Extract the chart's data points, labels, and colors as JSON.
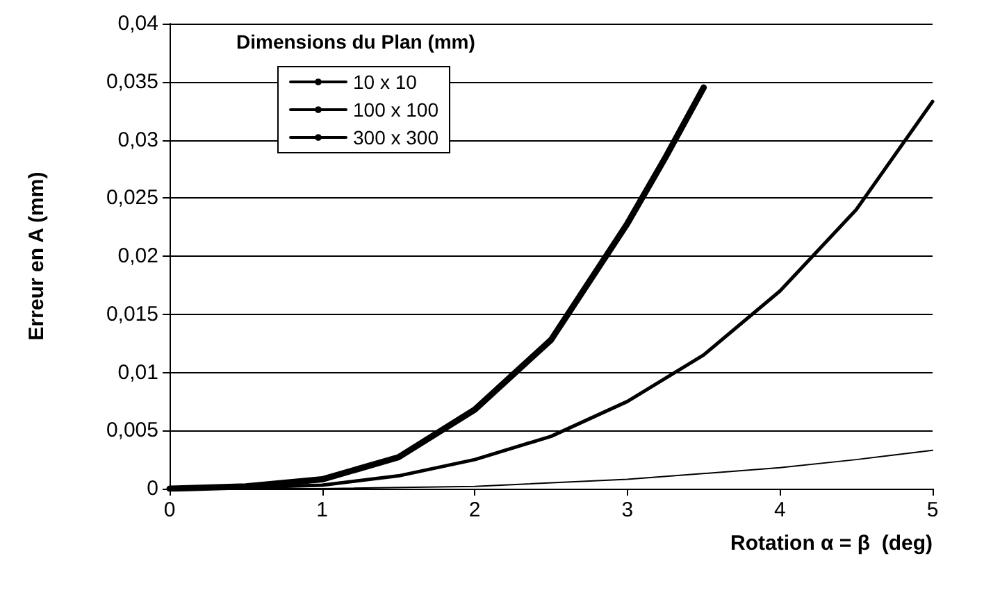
{
  "chart_data": {
    "type": "line",
    "xlabel": "Rotation α = β  (deg)",
    "ylabel": "Erreur en A (mm)",
    "legend_title": "Dimensions du Plan (mm)",
    "series": [
      {
        "name": "10 x 10",
        "color": "#000000",
        "x": [
          0,
          1,
          2,
          3,
          4,
          4.5,
          5
        ],
        "values": [
          0,
          0,
          0.0002,
          0.0008,
          0.0018,
          0.0025,
          0.0033
        ]
      },
      {
        "name": "100 x 100",
        "color": "#000000",
        "x": [
          0,
          0.5,
          1,
          1.5,
          2,
          2.5,
          3,
          3.5,
          4,
          4.5,
          5
        ],
        "values": [
          0,
          0.0001,
          0.0003,
          0.0011,
          0.0025,
          0.0045,
          0.0075,
          0.0115,
          0.017,
          0.024,
          0.0333
        ]
      },
      {
        "name": "300 x 300",
        "color": "#000000",
        "x": [
          0,
          0.5,
          1,
          1.5,
          2,
          2.5,
          3,
          3.25,
          3.5
        ],
        "values": [
          0,
          0.0002,
          0.0008,
          0.0027,
          0.0068,
          0.0128,
          0.0228,
          0.0285,
          0.0345
        ]
      }
    ],
    "xlim": [
      0,
      5
    ],
    "xticks": [
      0,
      1,
      2,
      3,
      4,
      5
    ],
    "ylim": [
      0,
      0.04
    ],
    "yticks": [
      {
        "value": 0,
        "label": "0"
      },
      {
        "value": 0.005,
        "label": "0,005"
      },
      {
        "value": 0.01,
        "label": "0,01"
      },
      {
        "value": 0.015,
        "label": "0,015"
      },
      {
        "value": 0.02,
        "label": "0,02"
      },
      {
        "value": 0.025,
        "label": "0,025"
      },
      {
        "value": 0.03,
        "label": "0,03"
      },
      {
        "value": 0.035,
        "label": "0,035"
      },
      {
        "value": 0.04,
        "label": "0,04"
      }
    ],
    "grid": "y",
    "legend": "top left",
    "marker": "none",
    "line_style": "solid"
  }
}
